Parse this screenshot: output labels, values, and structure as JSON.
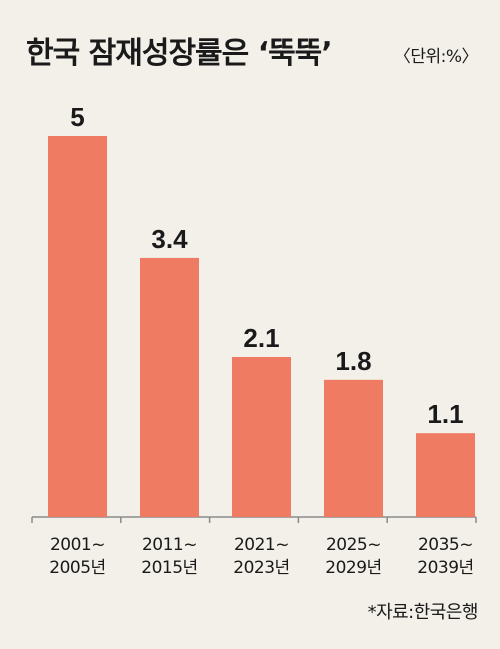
{
  "title": "한국 잠재성장률은 ‘뚝뚝’",
  "unit": "〈단위:%〉",
  "source": "*자료:한국은행",
  "colors": {
    "bar": "#ee7b62",
    "axis": "#8a8a8a",
    "background": "#f2f0e9"
  },
  "chart_data": {
    "type": "bar",
    "title": "한국 잠재성장률은 ‘뚝뚝’",
    "unit": "%",
    "categories": [
      [
        "2001~",
        "2005년"
      ],
      [
        "2011~",
        "2015년"
      ],
      [
        "2021~",
        "2023년"
      ],
      [
        "2025~",
        "2029년"
      ],
      [
        "2035~",
        "2039년"
      ]
    ],
    "values": [
      5,
      3.4,
      2.1,
      1.8,
      1.1
    ],
    "value_labels": [
      "5",
      "3.4",
      "2.1",
      "1.8",
      "1.1"
    ],
    "ylim": [
      0,
      5
    ],
    "grid": false,
    "legend": "none"
  }
}
